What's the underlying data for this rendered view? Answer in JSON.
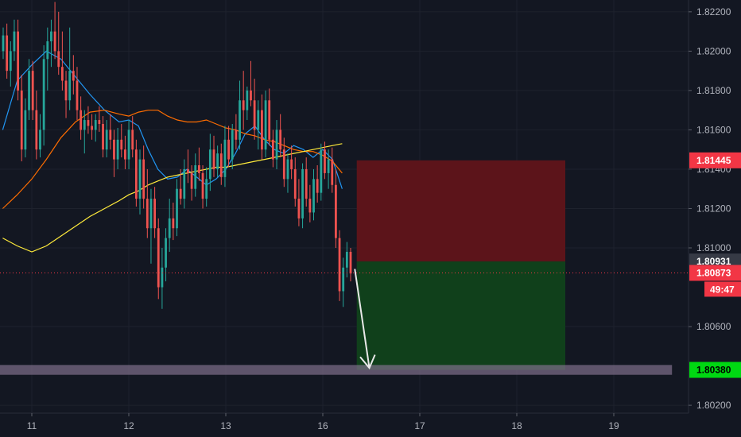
{
  "chart_data": {
    "type": "candlestick",
    "title": "",
    "xlabel": "",
    "ylabel": "",
    "x_ticks": [
      "11",
      "12",
      "13",
      "16",
      "17",
      "18",
      "19"
    ],
    "y_ticks": [
      "1.82200",
      "1.82000",
      "1.81800",
      "1.81600",
      "1.81400",
      "1.81200",
      "1.81000",
      "1.80600",
      "1.80200"
    ],
    "ylim": [
      1.8016,
      1.8226
    ],
    "grid": true,
    "price_labels": {
      "stop_loss": {
        "value": "1.81445",
        "color": "#f23645"
      },
      "entry": {
        "value": "1.80931",
        "color": "#363a45"
      },
      "last_price": {
        "value": "1.80873",
        "color": "#f23645"
      },
      "countdown": {
        "value": "49:47",
        "color": "#f23645"
      },
      "target": {
        "value": "1.80380",
        "color": "#00d812"
      }
    },
    "position": {
      "side": "short",
      "entry": 1.80931,
      "stop": 1.81445,
      "target": 1.8038,
      "start_x": 16.35,
      "end_x": 18.5,
      "risk_color": "#5c141a",
      "reward_color": "#10401b"
    },
    "support_zone": {
      "from": 1.80355,
      "to": 1.80405,
      "start_x": 10.6,
      "end_x": 19.6,
      "color": "#7f6f8a"
    },
    "arrow": {
      "from": [
        16.33,
        1.80893
      ],
      "to": [
        16.48,
        1.8039
      ],
      "color": "#e8e8e8"
    },
    "candle_colors": {
      "up": "#26a69a",
      "down": "#ef5350"
    },
    "candles_ohlc": [
      [
        1.82,
        1.8212,
        1.8196,
        1.8208
      ],
      [
        1.8208,
        1.8214,
        1.8186,
        1.819
      ],
      [
        1.819,
        1.8205,
        1.8182,
        1.82
      ],
      [
        1.82,
        1.8216,
        1.8195,
        1.821
      ],
      [
        1.821,
        1.8216,
        1.8175,
        1.818
      ],
      [
        1.818,
        1.8188,
        1.8144,
        1.815
      ],
      [
        1.815,
        1.8176,
        1.8146,
        1.817
      ],
      [
        1.817,
        1.8196,
        1.8165,
        1.819
      ],
      [
        1.819,
        1.8195,
        1.8165,
        1.817
      ],
      [
        1.817,
        1.818,
        1.8145,
        1.815
      ],
      [
        1.815,
        1.8168,
        1.8146,
        1.816
      ],
      [
        1.816,
        1.8203,
        1.8152,
        1.8196
      ],
      [
        1.8196,
        1.8212,
        1.818,
        1.8205
      ],
      [
        1.8205,
        1.8216,
        1.8192,
        1.821
      ],
      [
        1.821,
        1.8225,
        1.8196,
        1.82
      ],
      [
        1.82,
        1.822,
        1.8188,
        1.8192
      ],
      [
        1.8192,
        1.821,
        1.818,
        1.8185
      ],
      [
        1.8185,
        1.819,
        1.8166,
        1.8175
      ],
      [
        1.8175,
        1.8212,
        1.817,
        1.819
      ],
      [
        1.819,
        1.8198,
        1.8178,
        1.8185
      ],
      [
        1.8185,
        1.8192,
        1.8165,
        1.817
      ],
      [
        1.817,
        1.8177,
        1.8155,
        1.816
      ],
      [
        1.816,
        1.817,
        1.8148,
        1.8165
      ],
      [
        1.8165,
        1.8172,
        1.8158,
        1.8162
      ],
      [
        1.8162,
        1.8168,
        1.8155,
        1.816
      ],
      [
        1.816,
        1.8168,
        1.8154,
        1.8165
      ],
      [
        1.8165,
        1.8172,
        1.8159,
        1.8163
      ],
      [
        1.8163,
        1.8167,
        1.8146,
        1.815
      ],
      [
        1.815,
        1.8165,
        1.8146,
        1.816
      ],
      [
        1.816,
        1.8168,
        1.815,
        1.8155
      ],
      [
        1.8155,
        1.816,
        1.8136,
        1.8145
      ],
      [
        1.8145,
        1.8161,
        1.814,
        1.8155
      ],
      [
        1.8155,
        1.8163,
        1.8146,
        1.815
      ],
      [
        1.815,
        1.8157,
        1.814,
        1.8145
      ],
      [
        1.8145,
        1.8165,
        1.814,
        1.816
      ],
      [
        1.816,
        1.8167,
        1.8146,
        1.815
      ],
      [
        1.815,
        1.8155,
        1.8121,
        1.8125
      ],
      [
        1.8125,
        1.815,
        1.8117,
        1.8145
      ],
      [
        1.8145,
        1.8152,
        1.812,
        1.8125
      ],
      [
        1.8125,
        1.814,
        1.8105,
        1.811
      ],
      [
        1.811,
        1.813,
        1.8092,
        1.8125
      ],
      [
        1.8125,
        1.8131,
        1.8105,
        1.811
      ],
      [
        1.811,
        1.8115,
        1.8074,
        1.808
      ],
      [
        1.808,
        1.81,
        1.8069,
        1.809
      ],
      [
        1.809,
        1.811,
        1.8083,
        1.8105
      ],
      [
        1.8105,
        1.8125,
        1.8098,
        1.8115
      ],
      [
        1.8115,
        1.8123,
        1.8104,
        1.811
      ],
      [
        1.811,
        1.8135,
        1.8106,
        1.813
      ],
      [
        1.813,
        1.814,
        1.8122,
        1.8125
      ],
      [
        1.8125,
        1.8145,
        1.812,
        1.814
      ],
      [
        1.814,
        1.815,
        1.8133,
        1.8138
      ],
      [
        1.8138,
        1.8142,
        1.8124,
        1.813
      ],
      [
        1.813,
        1.8148,
        1.8126,
        1.8142
      ],
      [
        1.8142,
        1.8151,
        1.8134,
        1.8138
      ],
      [
        1.8138,
        1.8142,
        1.812,
        1.8125
      ],
      [
        1.8125,
        1.8141,
        1.8121,
        1.8135
      ],
      [
        1.8135,
        1.8158,
        1.8129,
        1.815
      ],
      [
        1.815,
        1.8157,
        1.8136,
        1.814
      ],
      [
        1.814,
        1.8152,
        1.8136,
        1.8148
      ],
      [
        1.8148,
        1.8153,
        1.8132,
        1.8136
      ],
      [
        1.8136,
        1.8162,
        1.8131,
        1.8155
      ],
      [
        1.8155,
        1.8162,
        1.8141,
        1.8145
      ],
      [
        1.8145,
        1.8163,
        1.814,
        1.816
      ],
      [
        1.816,
        1.8168,
        1.815,
        1.8155
      ],
      [
        1.8155,
        1.8185,
        1.815,
        1.8175
      ],
      [
        1.8175,
        1.819,
        1.816,
        1.817
      ],
      [
        1.817,
        1.8182,
        1.8165,
        1.818
      ],
      [
        1.818,
        1.8195,
        1.8172,
        1.8175
      ],
      [
        1.8175,
        1.8186,
        1.8155,
        1.816
      ],
      [
        1.816,
        1.8175,
        1.815,
        1.817
      ],
      [
        1.817,
        1.8178,
        1.8145,
        1.815
      ],
      [
        1.815,
        1.818,
        1.8146,
        1.8175
      ],
      [
        1.8175,
        1.8181,
        1.8152,
        1.8155
      ],
      [
        1.8155,
        1.816,
        1.8141,
        1.8145
      ],
      [
        1.8145,
        1.8165,
        1.814,
        1.816
      ],
      [
        1.816,
        1.8168,
        1.8146,
        1.815
      ],
      [
        1.815,
        1.8156,
        1.8131,
        1.8135
      ],
      [
        1.8135,
        1.8148,
        1.8128,
        1.8145
      ],
      [
        1.8145,
        1.8152,
        1.8135,
        1.814
      ],
      [
        1.814,
        1.8146,
        1.8121,
        1.8125
      ],
      [
        1.8125,
        1.8135,
        1.8111,
        1.8115
      ],
      [
        1.8115,
        1.8143,
        1.811,
        1.814
      ],
      [
        1.814,
        1.8146,
        1.8121,
        1.8125
      ],
      [
        1.8125,
        1.8132,
        1.8113,
        1.8118
      ],
      [
        1.8118,
        1.814,
        1.8114,
        1.8135
      ],
      [
        1.8135,
        1.8142,
        1.8123,
        1.8128
      ],
      [
        1.8128,
        1.8153,
        1.8124,
        1.815
      ],
      [
        1.815,
        1.8154,
        1.8135,
        1.8138
      ],
      [
        1.8138,
        1.815,
        1.813,
        1.8145
      ],
      [
        1.8145,
        1.8151,
        1.8128,
        1.8132
      ],
      [
        1.8132,
        1.814,
        1.81,
        1.8105
      ],
      [
        1.8105,
        1.8109,
        1.8073,
        1.8078
      ],
      [
        1.8078,
        1.8095,
        1.807,
        1.809
      ],
      [
        1.809,
        1.8103,
        1.8085,
        1.8098
      ],
      [
        1.8098,
        1.81,
        1.8083,
        1.8087
      ]
    ],
    "moving_averages": [
      {
        "color": "#2196f3",
        "width": 1.2,
        "points": [
          [
            10.7,
            1.816
          ],
          [
            10.85,
            1.8185
          ],
          [
            11.0,
            1.8193
          ],
          [
            11.15,
            1.82
          ],
          [
            11.3,
            1.8196
          ],
          [
            11.45,
            1.8187
          ],
          [
            11.6,
            1.8178
          ],
          [
            11.75,
            1.817
          ],
          [
            11.9,
            1.8164
          ],
          [
            12.0,
            1.8165
          ],
          [
            12.1,
            1.8162
          ],
          [
            12.2,
            1.815
          ],
          [
            12.3,
            1.814
          ],
          [
            12.4,
            1.8135
          ],
          [
            12.5,
            1.8136
          ],
          [
            12.6,
            1.814
          ],
          [
            12.7,
            1.8136
          ],
          [
            12.8,
            1.8132
          ],
          [
            12.9,
            1.8135
          ],
          [
            13.0,
            1.814
          ],
          [
            13.1,
            1.8148
          ],
          [
            13.2,
            1.8158
          ],
          [
            13.3,
            1.8162
          ],
          [
            13.4,
            1.8155
          ],
          [
            13.5,
            1.815
          ],
          [
            13.6,
            1.8148
          ],
          [
            13.7,
            1.8152
          ],
          [
            13.8,
            1.815
          ],
          [
            13.9,
            1.8146
          ],
          [
            14.0,
            1.815
          ],
          [
            14.1,
            1.8145
          ],
          [
            14.2,
            1.813
          ]
        ]
      },
      {
        "color": "#ff6d00",
        "width": 1.2,
        "points": [
          [
            10.7,
            1.812
          ],
          [
            10.85,
            1.8127
          ],
          [
            11.0,
            1.8135
          ],
          [
            11.15,
            1.8145
          ],
          [
            11.3,
            1.8156
          ],
          [
            11.45,
            1.8164
          ],
          [
            11.6,
            1.8169
          ],
          [
            11.75,
            1.817
          ],
          [
            11.9,
            1.8168
          ],
          [
            12.0,
            1.8167
          ],
          [
            12.1,
            1.8169
          ],
          [
            12.2,
            1.817
          ],
          [
            12.3,
            1.817
          ],
          [
            12.4,
            1.8167
          ],
          [
            12.5,
            1.8165
          ],
          [
            12.6,
            1.8164
          ],
          [
            12.7,
            1.8164
          ],
          [
            12.8,
            1.8165
          ],
          [
            12.9,
            1.8163
          ],
          [
            13.0,
            1.8161
          ],
          [
            13.1,
            1.816
          ],
          [
            13.2,
            1.8158
          ],
          [
            13.3,
            1.8157
          ],
          [
            13.4,
            1.8155
          ],
          [
            13.5,
            1.8154
          ],
          [
            13.6,
            1.8152
          ],
          [
            13.7,
            1.815
          ],
          [
            13.8,
            1.8149
          ],
          [
            13.9,
            1.8149
          ],
          [
            14.0,
            1.8147
          ],
          [
            14.1,
            1.8144
          ],
          [
            14.2,
            1.8138
          ]
        ]
      },
      {
        "color": "#ffeb3b",
        "width": 1.2,
        "points": [
          [
            10.7,
            1.8105
          ],
          [
            10.85,
            1.8101
          ],
          [
            11.0,
            1.8098
          ],
          [
            11.15,
            1.8101
          ],
          [
            11.3,
            1.8106
          ],
          [
            11.45,
            1.8111
          ],
          [
            11.6,
            1.8116
          ],
          [
            11.75,
            1.812
          ],
          [
            11.9,
            1.8124
          ],
          [
            12.0,
            1.8127
          ],
          [
            12.1,
            1.8129
          ],
          [
            12.2,
            1.8132
          ],
          [
            12.3,
            1.8134
          ],
          [
            12.4,
            1.8136
          ],
          [
            12.5,
            1.8137
          ],
          [
            12.6,
            1.8138
          ],
          [
            12.7,
            1.8139
          ],
          [
            12.8,
            1.814
          ],
          [
            12.9,
            1.8141
          ],
          [
            13.0,
            1.8141
          ],
          [
            13.1,
            1.8142
          ],
          [
            13.2,
            1.8143
          ],
          [
            13.3,
            1.8144
          ],
          [
            13.4,
            1.8145
          ],
          [
            13.5,
            1.8146
          ],
          [
            13.6,
            1.8147
          ],
          [
            13.7,
            1.8148
          ],
          [
            13.8,
            1.8149
          ],
          [
            13.9,
            1.815
          ],
          [
            14.0,
            1.8151
          ],
          [
            14.1,
            1.8152
          ],
          [
            14.2,
            1.8153
          ]
        ]
      }
    ]
  }
}
